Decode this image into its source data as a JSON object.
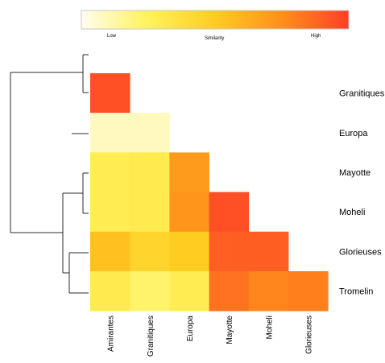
{
  "chart_data": {
    "type": "heatmap",
    "title": "",
    "color_scale": {
      "low_label": "Low",
      "mid_label": "Similarity",
      "high_label": "High",
      "colors": [
        "#fffdf0",
        "#fff25a",
        "#ffcc22",
        "#ff8f1a",
        "#ff3f27"
      ]
    },
    "row_labels": [
      "Granitiques",
      "Europa",
      "Mayotte",
      "Moheli",
      "Glorieuses",
      "Tromelin"
    ],
    "col_labels": [
      "Amirantes",
      "Granitiques",
      "Europa",
      "Mayotte",
      "Moheli",
      "Glorieuses"
    ],
    "values": [
      [
        0.95,
        null,
        null,
        null,
        null,
        null
      ],
      [
        0.08,
        0.08,
        null,
        null,
        null,
        null
      ],
      [
        0.28,
        0.3,
        0.7,
        null,
        null,
        null
      ],
      [
        0.28,
        0.3,
        0.72,
        0.95,
        null,
        null
      ],
      [
        0.55,
        0.45,
        0.5,
        0.9,
        0.9,
        null
      ],
      [
        0.3,
        0.22,
        0.28,
        0.84,
        0.78,
        0.8
      ]
    ],
    "dendrogram": "left"
  }
}
